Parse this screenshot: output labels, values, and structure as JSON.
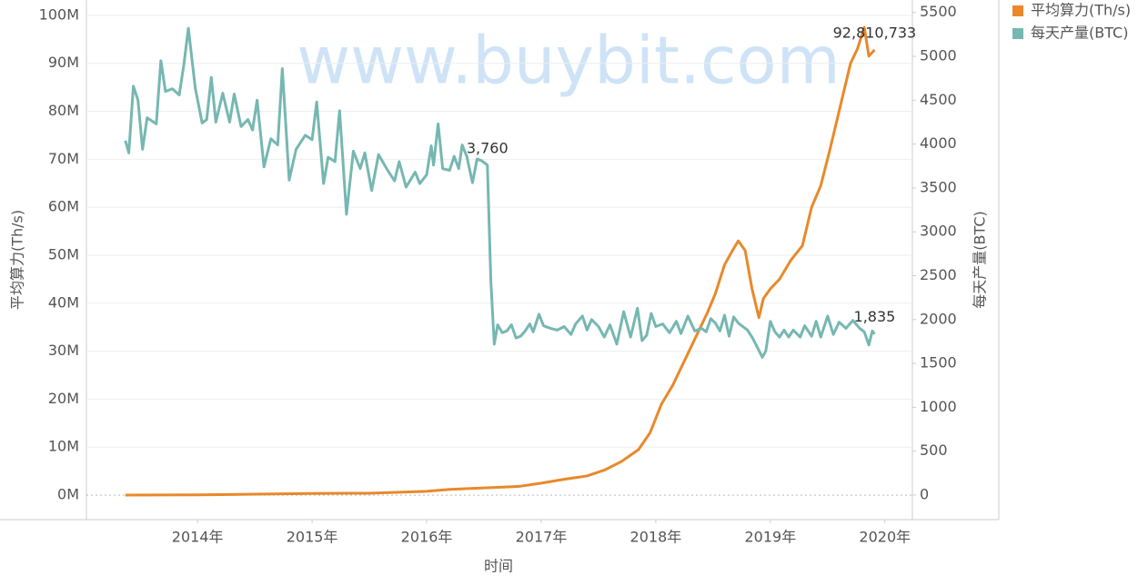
{
  "chart_data": {
    "type": "line",
    "watermark": "www.buybit.com",
    "xlabel": "时间",
    "ylabel": "平均算力(Th/s)",
    "y2label": "每天产量(BTC)",
    "xlim": [
      2013.03,
      2020.24
    ],
    "xticks": [
      {
        "value": 2014,
        "label": "2014年"
      },
      {
        "value": 2015,
        "label": "2015年"
      },
      {
        "value": 2016,
        "label": "2016年"
      },
      {
        "value": 2017,
        "label": "2017年"
      },
      {
        "value": 2018,
        "label": "2018年"
      },
      {
        "value": 2019,
        "label": "2019年"
      },
      {
        "value": 2020,
        "label": "2020年"
      }
    ],
    "ylim": [
      -5100000,
      103200000
    ],
    "yticks": [
      {
        "value": 0,
        "label": "0M"
      },
      {
        "value": 10000000,
        "label": "10M"
      },
      {
        "value": 20000000,
        "label": "20M"
      },
      {
        "value": 30000000,
        "label": "30M"
      },
      {
        "value": 40000000,
        "label": "40M"
      },
      {
        "value": 50000000,
        "label": "50M"
      },
      {
        "value": 60000000,
        "label": "60M"
      },
      {
        "value": 70000000,
        "label": "70M"
      },
      {
        "value": 80000000,
        "label": "80M"
      },
      {
        "value": 90000000,
        "label": "90M"
      },
      {
        "value": 100000000,
        "label": "100M"
      }
    ],
    "y2lim": [
      -280,
      5642
    ],
    "y2ticks": [
      0,
      500,
      1000,
      1500,
      2000,
      2500,
      3000,
      3500,
      4000,
      4500,
      5000,
      5500
    ],
    "grid": true,
    "legend": "right",
    "series": [
      {
        "name": "平均算力(Th/s)",
        "color": "#e8892b",
        "axis": "y",
        "x": [
          2013.37,
          2014.0,
          2014.5,
          2015.0,
          2015.5,
          2016.0,
          2016.2,
          2016.5,
          2016.8,
          2017.0,
          2017.2,
          2017.4,
          2017.55,
          2017.7,
          2017.85,
          2017.95,
          2018.05,
          2018.15,
          2018.25,
          2018.35,
          2018.45,
          2018.52,
          2018.6,
          2018.67,
          2018.72,
          2018.78,
          2018.84,
          2018.9,
          2018.94,
          2019.0,
          2019.08,
          2019.18,
          2019.28,
          2019.36,
          2019.44,
          2019.52,
          2019.6,
          2019.7,
          2019.76,
          2019.82,
          2019.86,
          2019.91
        ],
        "values": [
          10000,
          50000,
          200000,
          350000,
          400000,
          800000,
          1200000,
          1500000,
          1800000,
          2500000,
          3300000,
          4000000,
          5200000,
          7000000,
          9500000,
          13000000,
          19000000,
          23000000,
          28000000,
          33000000,
          38000000,
          42000000,
          48000000,
          51000000,
          53000000,
          51000000,
          43000000,
          37000000,
          41000000,
          43000000,
          45000000,
          49000000,
          52000000,
          60000000,
          64500000,
          72000000,
          80000000,
          90000000,
          93000000,
          97500000,
          91500000,
          92810733
        ],
        "value_labels": {
          "41": "92,810,733"
        }
      },
      {
        "name": "每天产量(BTC)",
        "color": "#76b7b2",
        "axis": "y2",
        "x": [
          2013.37,
          2013.4,
          2013.44,
          2013.48,
          2013.52,
          2013.56,
          2013.64,
          2013.68,
          2013.72,
          2013.78,
          2013.84,
          2013.88,
          2013.92,
          2013.98,
          2014.04,
          2014.08,
          2014.12,
          2014.16,
          2014.22,
          2014.28,
          2014.32,
          2014.38,
          2014.44,
          2014.48,
          2014.52,
          2014.58,
          2014.64,
          2014.7,
          2014.74,
          2014.8,
          2014.86,
          2014.94,
          2015.0,
          2015.04,
          2015.1,
          2015.14,
          2015.2,
          2015.24,
          2015.3,
          2015.36,
          2015.42,
          2015.46,
          2015.52,
          2015.58,
          2015.66,
          2015.72,
          2015.76,
          2015.82,
          2015.9,
          2015.94,
          2016.0,
          2016.04,
          2016.06,
          2016.1,
          2016.14,
          2016.2,
          2016.24,
          2016.28,
          2016.31,
          2016.35,
          2016.4,
          2016.44,
          2016.48,
          2016.53,
          2016.56,
          2016.59,
          2016.62,
          2016.66,
          2016.7,
          2016.74,
          2016.78,
          2016.82,
          2016.86,
          2016.9,
          2016.93,
          2016.98,
          2017.02,
          2017.08,
          2017.14,
          2017.2,
          2017.26,
          2017.3,
          2017.36,
          2017.4,
          2017.44,
          2017.5,
          2017.55,
          2017.6,
          2017.66,
          2017.72,
          2017.78,
          2017.84,
          2017.88,
          2017.92,
          2017.96,
          2018.0,
          2018.06,
          2018.12,
          2018.18,
          2018.22,
          2018.28,
          2018.34,
          2018.4,
          2018.44,
          2018.48,
          2018.52,
          2018.56,
          2018.6,
          2018.64,
          2018.68,
          2018.72,
          2018.8,
          2018.84,
          2018.88,
          2018.93,
          2018.96,
          2019.0,
          2019.04,
          2019.08,
          2019.12,
          2019.16,
          2019.2,
          2019.26,
          2019.3,
          2019.36,
          2019.4,
          2019.44,
          2019.5,
          2019.55,
          2019.6,
          2019.66,
          2019.72,
          2019.78,
          2019.82,
          2019.86,
          2019.89,
          2019.91
        ],
        "values": [
          4040,
          3900,
          4660,
          4500,
          3940,
          4300,
          4230,
          4950,
          4600,
          4630,
          4560,
          4900,
          5320,
          4640,
          4240,
          4280,
          4760,
          4250,
          4580,
          4250,
          4570,
          4200,
          4280,
          4160,
          4500,
          3740,
          4060,
          3990,
          4860,
          3590,
          3940,
          4100,
          4050,
          4480,
          3550,
          3850,
          3800,
          4380,
          3200,
          3920,
          3720,
          3900,
          3470,
          3880,
          3700,
          3580,
          3800,
          3510,
          3680,
          3550,
          3650,
          3980,
          3760,
          4230,
          3720,
          3700,
          3860,
          3720,
          3990,
          3860,
          3560,
          3830,
          3810,
          3760,
          2450,
          1720,
          1940,
          1850,
          1870,
          1940,
          1790,
          1810,
          1870,
          1950,
          1860,
          2060,
          1930,
          1900,
          1880,
          1920,
          1830,
          1950,
          2040,
          1880,
          2000,
          1920,
          1800,
          1940,
          1720,
          2090,
          1800,
          2130,
          1760,
          1820,
          2070,
          1920,
          1950,
          1850,
          1980,
          1840,
          2040,
          1870,
          1900,
          1860,
          2010,
          1960,
          1870,
          2050,
          1810,
          2030,
          1960,
          1880,
          1800,
          1700,
          1570,
          1640,
          1980,
          1860,
          1800,
          1880,
          1800,
          1880,
          1800,
          1930,
          1810,
          1980,
          1800,
          2040,
          1830,
          1970,
          1900,
          1990,
          1900,
          1860,
          1710,
          1870,
          1835
        ],
        "value_labels": {
          "63": "3,760",
          "136": "1,835"
        }
      }
    ]
  }
}
